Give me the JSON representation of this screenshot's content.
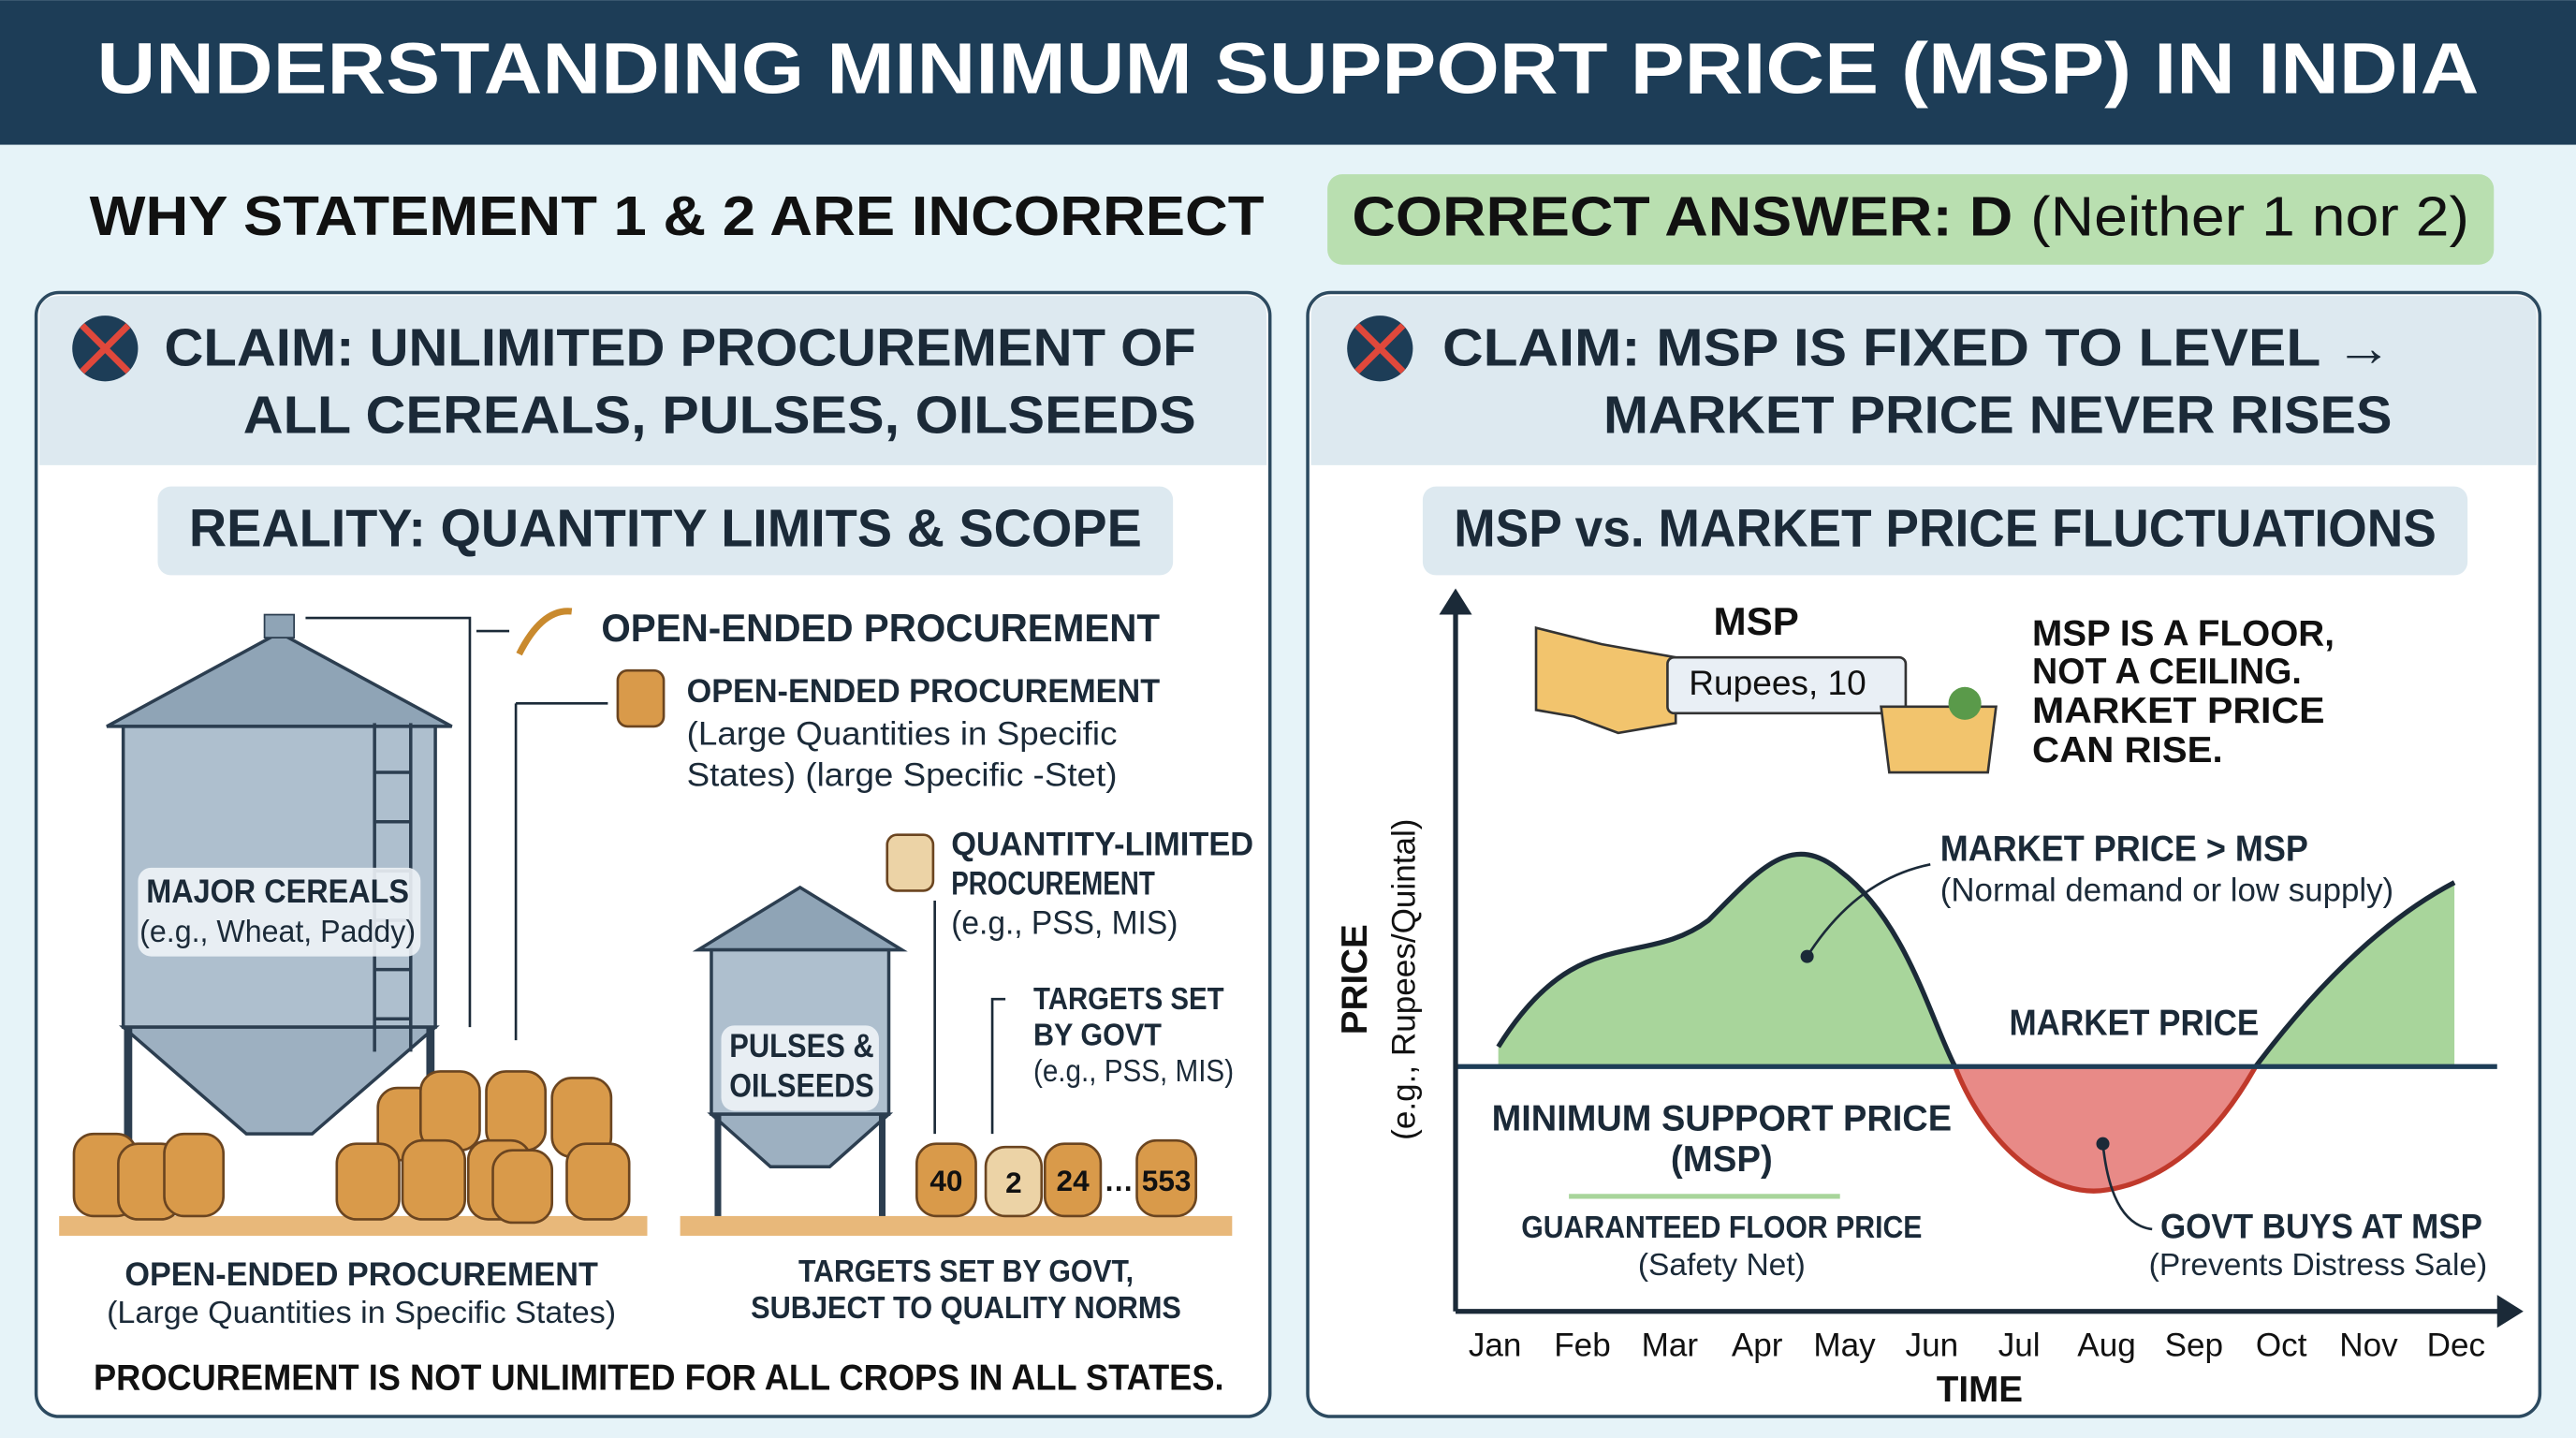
{
  "header": {
    "title": "UNDERSTANDING MINIMUM SUPPORT PRICE (MSP) IN INDIA"
  },
  "intro": {
    "heading": "WHY STATEMENT 1 & 2 ARE INCORRECT",
    "answer_label": "CORRECT ANSWER: D",
    "answer_detail": "(Neither 1 nor 2)"
  },
  "left_panel": {
    "claim": [
      "CLAIM: UNLIMITED PROCUREMENT OF",
      "ALL CEREALS, PULSES, OILSEEDS"
    ],
    "reality": "REALITY: QUANTITY LIMITS & SCOPE",
    "callout_top": "OPEN-ENDED PROCUREMENT",
    "callout_open": [
      "OPEN-ENDED PROCUREMENT",
      "(Large Quantities in Specific",
      "States) (large Specific -Stet)"
    ],
    "callout_limited": [
      "QUANTITY-LIMITED",
      "PROCUREMENT",
      "(e.g., PSS, MIS)"
    ],
    "callout_targets": [
      "TARGETS SET",
      "BY GOVT",
      "(e.g., PSS, MIS)"
    ],
    "silo_large": [
      "MAJOR CEREALS",
      "(e.g., Wheat, Paddy)"
    ],
    "silo_small": [
      "PULSES &",
      "OILSEEDS"
    ],
    "sacks": [
      "40",
      "2",
      "24",
      "…",
      "553"
    ],
    "caption_left": [
      "OPEN-ENDED PROCUREMENT",
      "(Large Quantities in Specific States)"
    ],
    "caption_right": [
      "TARGETS SET BY GOVT,",
      "SUBJECT TO QUALITY NORMS"
    ],
    "footer": "PROCUREMENT IS NOT UNLIMITED FOR ALL CROPS IN ALL STATES."
  },
  "right_panel": {
    "claim": [
      "CLAIM: MSP IS FIXED TO LEVEL →",
      "MARKET PRICE NEVER RISES"
    ],
    "heading": "MSP vs. MARKET PRICE FLUCTUATIONS",
    "sign": {
      "title": "MSP",
      "value": "Rupees, 10"
    },
    "note": [
      "MSP IS A FLOOR,",
      "NOT A CEILING.",
      "MARKET PRICE",
      "CAN RISE."
    ],
    "above": [
      "MARKET PRICE > MSP",
      "(Normal demand or low supply)"
    ],
    "market_price_label": "MARKET PRICE",
    "msp_label": [
      "MINIMUM SUPPORT PRICE",
      "(MSP)"
    ],
    "floor": [
      "GUARANTEED FLOOR PRICE",
      "(Safety Net)"
    ],
    "govt": [
      "GOVT BUYS AT MSP",
      "(Prevents Distress Sale)"
    ],
    "y_axis": [
      "PRICE",
      "(e.g., Rupees/Quintal)"
    ],
    "months": [
      "Jan",
      "Feb",
      "Mar",
      "Apr",
      "May",
      "Jun",
      "Jul",
      "Aug",
      "Sep",
      "Oct",
      "Nov",
      "Dec"
    ],
    "x_axis": "TIME"
  }
}
